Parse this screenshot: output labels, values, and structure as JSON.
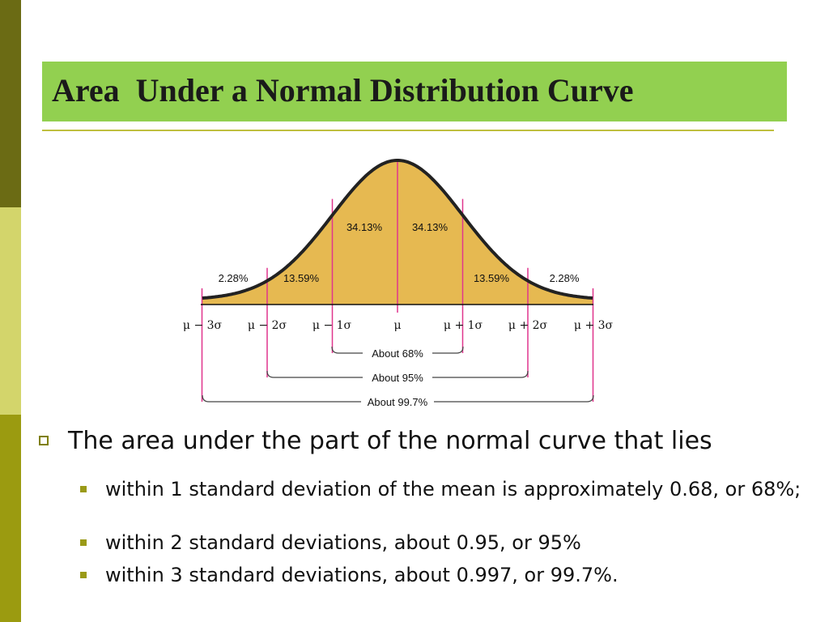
{
  "colors": {
    "strip_dark": "#6b6b14",
    "strip_light": "#d3d56b",
    "strip_mid": "#9b9b10",
    "title_bg": "#92d050",
    "curve_fill": "#e6b951",
    "marker": "#e0358d",
    "axis": "#111111"
  },
  "title": "Area  Under a Normal Distribution Curve",
  "diagram": {
    "areas": {
      "tail_left": "2.28%",
      "mid_left": "13.59%",
      "center_left": "34.13%",
      "center_right": "34.13%",
      "mid_right": "13.59%",
      "tail_right": "2.28%"
    },
    "axis_labels": [
      "μ − 3σ",
      "μ − 2σ",
      "μ − 1σ",
      "μ",
      "μ + 1σ",
      "μ + 2σ",
      "μ + 3σ"
    ],
    "brackets": [
      "About 68%",
      "About 95%",
      "About 99.7%"
    ]
  },
  "bullets": {
    "main": "The area under the part of the normal curve that lies",
    "sub": [
      "within 1 standard deviation of the mean is approximately 0.68, or 68%;",
      "within 2 standard deviations, about 0.95, or 95%",
      "within 3 standard deviations, about 0.997, or 99.7%."
    ]
  }
}
